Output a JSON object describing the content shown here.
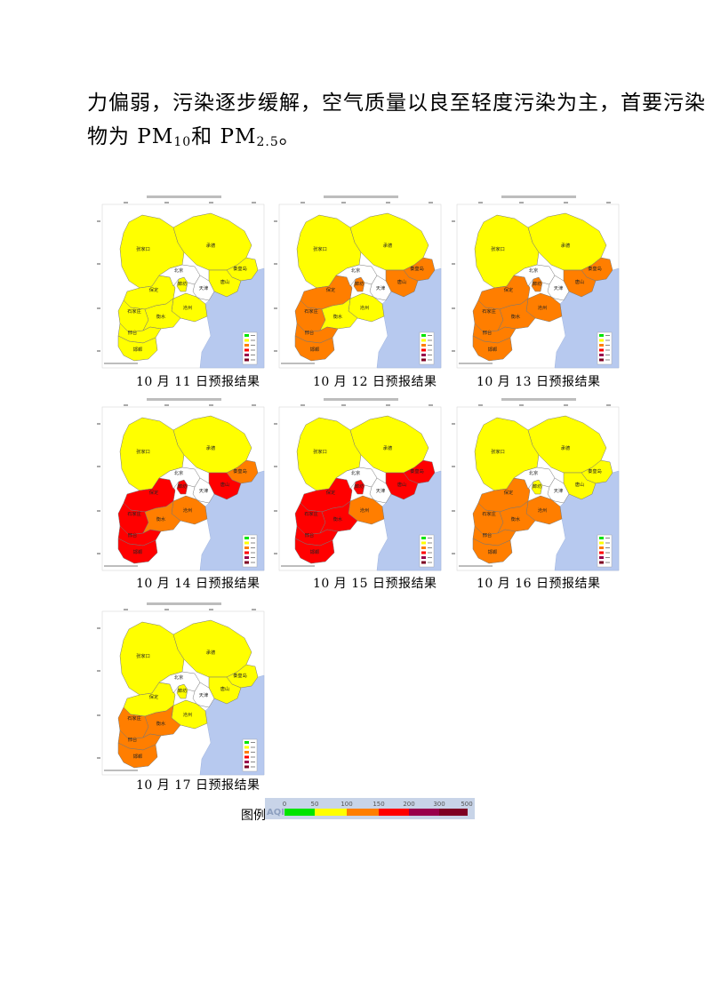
{
  "paragraph": {
    "line1": "力偏弱，污染逐步缓解，空气质量以良至轻度污染为主，首要污染",
    "line2_prefix": "物为 PM",
    "line2_sub1": "10",
    "line2_mid": "和 PM",
    "line2_sub2": "2.5",
    "line2_suffix": "。"
  },
  "colors": {
    "excellent": "#00e400",
    "good": "#ffff00",
    "light": "#ff7e00",
    "moderate": "#ff0000",
    "heavy": "#99004c",
    "severe": "#7e0023",
    "sea": "#b7c9ef",
    "outside": "#ffffff"
  },
  "city_labels": [
    "张家口",
    "承德",
    "北京",
    "秦皇岛",
    "唐山",
    "天津",
    "廊坊",
    "保定",
    "沧州",
    "石家庄",
    "衡水",
    "邢台",
    "邯郸"
  ],
  "panels": [
    {
      "caption": "10 月 11 日预报结果",
      "levels": {
        "zjk": "good",
        "cd": "good",
        "qhd": "good",
        "ts": "good",
        "lf": "good",
        "bd": "good",
        "cz": "good",
        "sjz": "good",
        "hs": "good",
        "xt": "good",
        "hd": "good"
      }
    },
    {
      "caption": "10 月 12 日预报结果",
      "levels": {
        "zjk": "good",
        "cd": "good",
        "qhd": "light",
        "ts": "light",
        "lf": "light",
        "bd": "light",
        "cz": "good",
        "sjz": "light",
        "hs": "good",
        "xt": "light",
        "hd": "light"
      }
    },
    {
      "caption": "10 月 13 日预报结果",
      "levels": {
        "zjk": "good",
        "cd": "good",
        "qhd": "light",
        "ts": "light",
        "lf": "light",
        "bd": "light",
        "cz": "light",
        "sjz": "light",
        "hs": "light",
        "xt": "light",
        "hd": "light"
      }
    },
    {
      "caption": "10 月 14 日预报结果",
      "levels": {
        "zjk": "good",
        "cd": "good",
        "qhd": "light",
        "ts": "moderate",
        "lf": "moderate",
        "bd": "moderate",
        "cz": "light",
        "sjz": "moderate",
        "hs": "light",
        "xt": "moderate",
        "hd": "moderate"
      }
    },
    {
      "caption": "10 月 15 日预报结果",
      "levels": {
        "zjk": "good",
        "cd": "good",
        "qhd": "moderate",
        "ts": "moderate",
        "lf": "moderate",
        "bd": "moderate",
        "cz": "light",
        "sjz": "moderate",
        "hs": "moderate",
        "xt": "moderate",
        "hd": "moderate"
      }
    },
    {
      "caption": "10 月 16 日预报结果",
      "levels": {
        "zjk": "good",
        "cd": "good",
        "qhd": "good",
        "ts": "good",
        "lf": "good",
        "bd": "light",
        "cz": "light",
        "sjz": "light",
        "hs": "light",
        "xt": "light",
        "hd": "light"
      }
    },
    {
      "caption": "10 月 17 日预报结果",
      "levels": {
        "zjk": "good",
        "cd": "good",
        "qhd": "good",
        "ts": "good",
        "lf": "good",
        "bd": "good",
        "cz": "good",
        "sjz": "light",
        "hs": "light",
        "xt": "light",
        "hd": "light"
      }
    }
  ],
  "legend": {
    "label": "图例",
    "aqi_label": "AQI",
    "ticks": [
      "0",
      "50",
      "100",
      "150",
      "200",
      "300",
      "500"
    ]
  }
}
